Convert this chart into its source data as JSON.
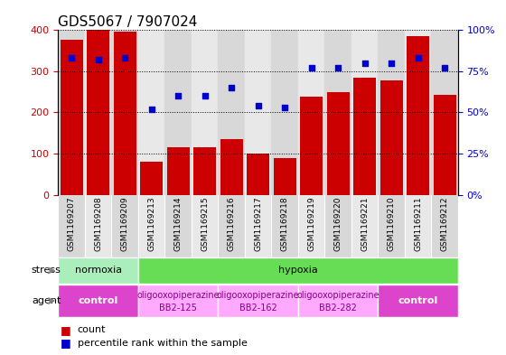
{
  "title": "GDS5067 / 7907024",
  "samples": [
    "GSM1169207",
    "GSM1169208",
    "GSM1169209",
    "GSM1169213",
    "GSM1169214",
    "GSM1169215",
    "GSM1169216",
    "GSM1169217",
    "GSM1169218",
    "GSM1169219",
    "GSM1169220",
    "GSM1169221",
    "GSM1169210",
    "GSM1169211",
    "GSM1169212"
  ],
  "counts": [
    375,
    400,
    395,
    80,
    115,
    115,
    135,
    100,
    90,
    238,
    248,
    285,
    278,
    385,
    242
  ],
  "percentiles": [
    83,
    82,
    83,
    52,
    60,
    60,
    65,
    54,
    53,
    77,
    77,
    80,
    80,
    83,
    77
  ],
  "bar_color": "#cc0000",
  "dot_color": "#0000cc",
  "ylim_left": [
    0,
    400
  ],
  "ylim_right": [
    0,
    100
  ],
  "yticks_left": [
    0,
    100,
    200,
    300,
    400
  ],
  "yticks_right": [
    0,
    25,
    50,
    75,
    100
  ],
  "col_colors": [
    "#d8d8d8",
    "#e8e8e8"
  ],
  "stress_groups": [
    {
      "label": "normoxia",
      "start": 0,
      "end": 3,
      "color": "#aaeebb"
    },
    {
      "label": "hypoxia",
      "start": 3,
      "end": 15,
      "color": "#66dd55"
    }
  ],
  "agent_groups": [
    {
      "label": "control",
      "line2": "",
      "start": 0,
      "end": 3,
      "color": "#dd44cc",
      "text_color": "#ffffff",
      "bold": true
    },
    {
      "label": "oligooxopiperazine",
      "line2": "BB2-125",
      "start": 3,
      "end": 6,
      "color": "#ffaaff",
      "text_color": "#880088",
      "bold": false
    },
    {
      "label": "oligooxopiperazine",
      "line2": "BB2-162",
      "start": 6,
      "end": 9,
      "color": "#ffaaff",
      "text_color": "#880088",
      "bold": false
    },
    {
      "label": "oligooxopiperazine",
      "line2": "BB2-282",
      "start": 9,
      "end": 12,
      "color": "#ffaaff",
      "text_color": "#880088",
      "bold": false
    },
    {
      "label": "control",
      "line2": "",
      "start": 12,
      "end": 15,
      "color": "#dd44cc",
      "text_color": "#ffffff",
      "bold": true
    }
  ],
  "tick_color_left": "#cc0000",
  "tick_color_right": "#0000cc",
  "title_fontsize": 11,
  "tick_fontsize": 8,
  "sample_fontsize": 6.5,
  "annot_fontsize": 8,
  "legend_fontsize": 8
}
